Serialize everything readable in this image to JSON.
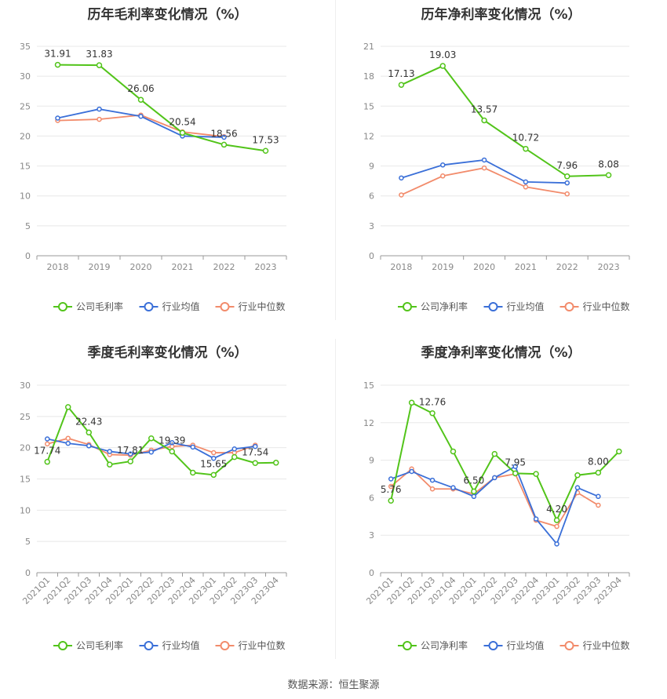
{
  "source_label": "数据来源：恒生聚源",
  "legend_labels": {
    "gross_company": "公司毛利率",
    "net_company": "公司净利率",
    "industry_avg": "行业均值",
    "industry_median": "行业中位数"
  },
  "colors": {
    "company": "#52c41a",
    "industry_avg": "#3a6fd8",
    "industry_median": "#f28b6b",
    "grid": "#e8e8e8",
    "axis_text": "#888888",
    "label_text": "#333333"
  },
  "chart_data": [
    {
      "id": "annual-gross",
      "type": "line",
      "title": "历年毛利率变化情况（%）",
      "categories": [
        "2018",
        "2019",
        "2020",
        "2021",
        "2022",
        "2023"
      ],
      "yticks": [
        "0",
        "5",
        "10",
        "15",
        "20",
        "25",
        "30",
        "35"
      ],
      "ylim": [
        0,
        35
      ],
      "grid": true,
      "legend_position": "bottom",
      "series": [
        {
          "name": "公司毛利率",
          "values": [
            31.91,
            31.83,
            26.06,
            20.54,
            18.56,
            17.53
          ]
        },
        {
          "name": "行业均值",
          "values": [
            23.0,
            24.5,
            23.3,
            20.0,
            19.8,
            null
          ]
        },
        {
          "name": "行业中位数",
          "values": [
            22.6,
            22.8,
            23.5,
            20.7,
            19.9,
            null
          ]
        }
      ],
      "data_labels": [
        {
          "index": 0,
          "text": "31.91"
        },
        {
          "index": 1,
          "text": "31.83"
        },
        {
          "index": 2,
          "text": "26.06"
        },
        {
          "index": 3,
          "text": "20.54"
        },
        {
          "index": 4,
          "text": "18.56"
        },
        {
          "index": 5,
          "text": "17.53"
        }
      ]
    },
    {
      "id": "annual-net",
      "type": "line",
      "title": "历年净利率变化情况（%）",
      "categories": [
        "2018",
        "2019",
        "2020",
        "2021",
        "2022",
        "2023"
      ],
      "yticks": [
        "0",
        "3",
        "6",
        "9",
        "12",
        "15",
        "18",
        "21"
      ],
      "ylim": [
        0,
        21
      ],
      "grid": true,
      "legend_position": "bottom",
      "series": [
        {
          "name": "公司净利率",
          "values": [
            17.13,
            19.03,
            13.57,
            10.72,
            7.96,
            8.08
          ]
        },
        {
          "name": "行业均值",
          "values": [
            7.8,
            9.1,
            9.6,
            7.4,
            7.3,
            null
          ]
        },
        {
          "name": "行业中位数",
          "values": [
            6.1,
            8.0,
            8.8,
            6.9,
            6.2,
            null
          ]
        }
      ],
      "data_labels": [
        {
          "index": 0,
          "text": "17.13"
        },
        {
          "index": 1,
          "text": "19.03"
        },
        {
          "index": 2,
          "text": "13.57"
        },
        {
          "index": 3,
          "text": "10.72"
        },
        {
          "index": 4,
          "text": "7.96"
        },
        {
          "index": 5,
          "text": "8.08"
        }
      ]
    },
    {
      "id": "quarter-gross",
      "type": "line",
      "title": "季度毛利率变化情况（%）",
      "categories": [
        "2021Q1",
        "2021Q2",
        "2021Q3",
        "2021Q4",
        "2022Q1",
        "2022Q2",
        "2022Q3",
        "2022Q4",
        "2023Q1",
        "2023Q2",
        "2023Q3",
        "2023Q4"
      ],
      "yticks": [
        "0",
        "5",
        "10",
        "15",
        "20",
        "25",
        "30"
      ],
      "ylim": [
        0,
        30
      ],
      "grid": true,
      "legend_position": "bottom",
      "series": [
        {
          "name": "公司毛利率",
          "values": [
            17.74,
            26.5,
            22.43,
            17.3,
            17.81,
            21.5,
            19.39,
            16.0,
            15.65,
            18.5,
            17.54,
            17.6
          ]
        },
        {
          "name": "行业均值",
          "values": [
            21.4,
            20.7,
            20.3,
            19.4,
            19.0,
            19.3,
            20.8,
            20.1,
            18.3,
            19.8,
            20.2,
            null
          ]
        },
        {
          "name": "行业中位数",
          "values": [
            20.6,
            21.5,
            20.5,
            18.9,
            18.8,
            19.6,
            20.2,
            20.4,
            19.2,
            19.2,
            20.4,
            null
          ]
        }
      ],
      "data_labels": [
        {
          "index": 0,
          "text": "17.74"
        },
        {
          "index": 2,
          "text": "22.43"
        },
        {
          "index": 4,
          "text": "17.81"
        },
        {
          "index": 6,
          "text": "19.39"
        },
        {
          "index": 8,
          "text": "15.65"
        },
        {
          "index": 10,
          "text": "17.54"
        }
      ]
    },
    {
      "id": "quarter-net",
      "type": "line",
      "title": "季度净利率变化情况（%）",
      "categories": [
        "2021Q1",
        "2021Q2",
        "2021Q3",
        "2021Q4",
        "2022Q1",
        "2022Q2",
        "2022Q3",
        "2022Q4",
        "2023Q1",
        "2023Q2",
        "2023Q3",
        "2023Q4"
      ],
      "yticks": [
        "0",
        "3",
        "6",
        "9",
        "12",
        "15"
      ],
      "ylim": [
        0,
        15
      ],
      "grid": true,
      "legend_position": "bottom",
      "series": [
        {
          "name": "公司净利率",
          "values": [
            5.76,
            13.6,
            12.76,
            9.7,
            6.5,
            9.5,
            7.95,
            7.9,
            4.2,
            7.8,
            8.0,
            9.7
          ]
        },
        {
          "name": "行业均值",
          "values": [
            7.5,
            8.1,
            7.4,
            6.8,
            6.1,
            7.6,
            8.5,
            4.3,
            2.3,
            6.8,
            6.1,
            null
          ]
        },
        {
          "name": "行业中位数",
          "values": [
            6.9,
            8.3,
            6.7,
            6.7,
            6.3,
            7.6,
            7.9,
            4.2,
            3.7,
            6.4,
            5.4,
            null
          ]
        }
      ],
      "data_labels": [
        {
          "index": 0,
          "text": "5.76"
        },
        {
          "index": 2,
          "text": "12.76"
        },
        {
          "index": 4,
          "text": "6.50"
        },
        {
          "index": 6,
          "text": "7.95"
        },
        {
          "index": 8,
          "text": "4.20"
        },
        {
          "index": 10,
          "text": "8.00"
        }
      ]
    }
  ]
}
